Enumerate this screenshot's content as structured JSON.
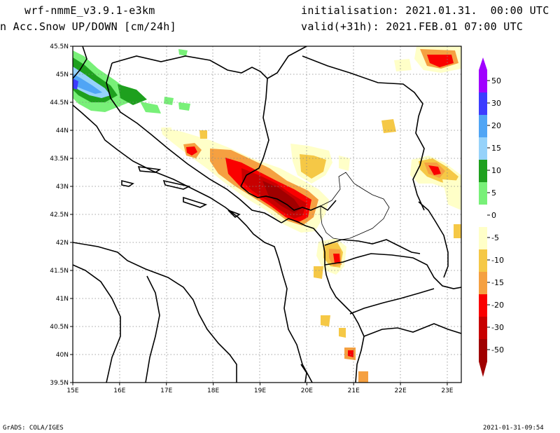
{
  "header": {
    "model": "wrf-nmmE_v3.9.1-e3km",
    "variable": "n Acc.Snow UP/DOWN [cm/24h]",
    "init": "initialisation: 2021.01.31.  00:00 UTC",
    "valid": "valid(+31h): 2021.FEB.01 07:00 UTC"
  },
  "axes": {
    "x_ticks": [
      "15E",
      "16E",
      "17E",
      "18E",
      "19E",
      "20E",
      "21E",
      "22E",
      "23E"
    ],
    "y_ticks": [
      "45.5N",
      "45N",
      "44.5N",
      "44N",
      "43.5N",
      "43N",
      "42.5N",
      "42N",
      "41.5N",
      "41N",
      "40.5N",
      "40N",
      "39.5N"
    ],
    "lon_range": [
      15,
      23.3
    ],
    "lat_range": [
      39.5,
      45.5
    ]
  },
  "colorbar": {
    "levels": [
      "50",
      "30",
      "20",
      "15",
      "10",
      "5",
      "0",
      "-5",
      "-10",
      "-15",
      "-20",
      "-30",
      "-50"
    ],
    "colors": [
      "#a000ff",
      "#3c3cff",
      "#50a5f5",
      "#96d2fa",
      "#1ea01e",
      "#78f078",
      "#ffffff",
      "#ffffc8",
      "#f5c846",
      "#f5a041",
      "#fa0000",
      "#c80000",
      "#a00000"
    ],
    "top_arrow_color": "#a000ff",
    "bottom_arrow_color": "#a00000"
  },
  "footer": {
    "left": "GrADS: COLA/IGES",
    "right": "2021-01-31-09:54"
  }
}
